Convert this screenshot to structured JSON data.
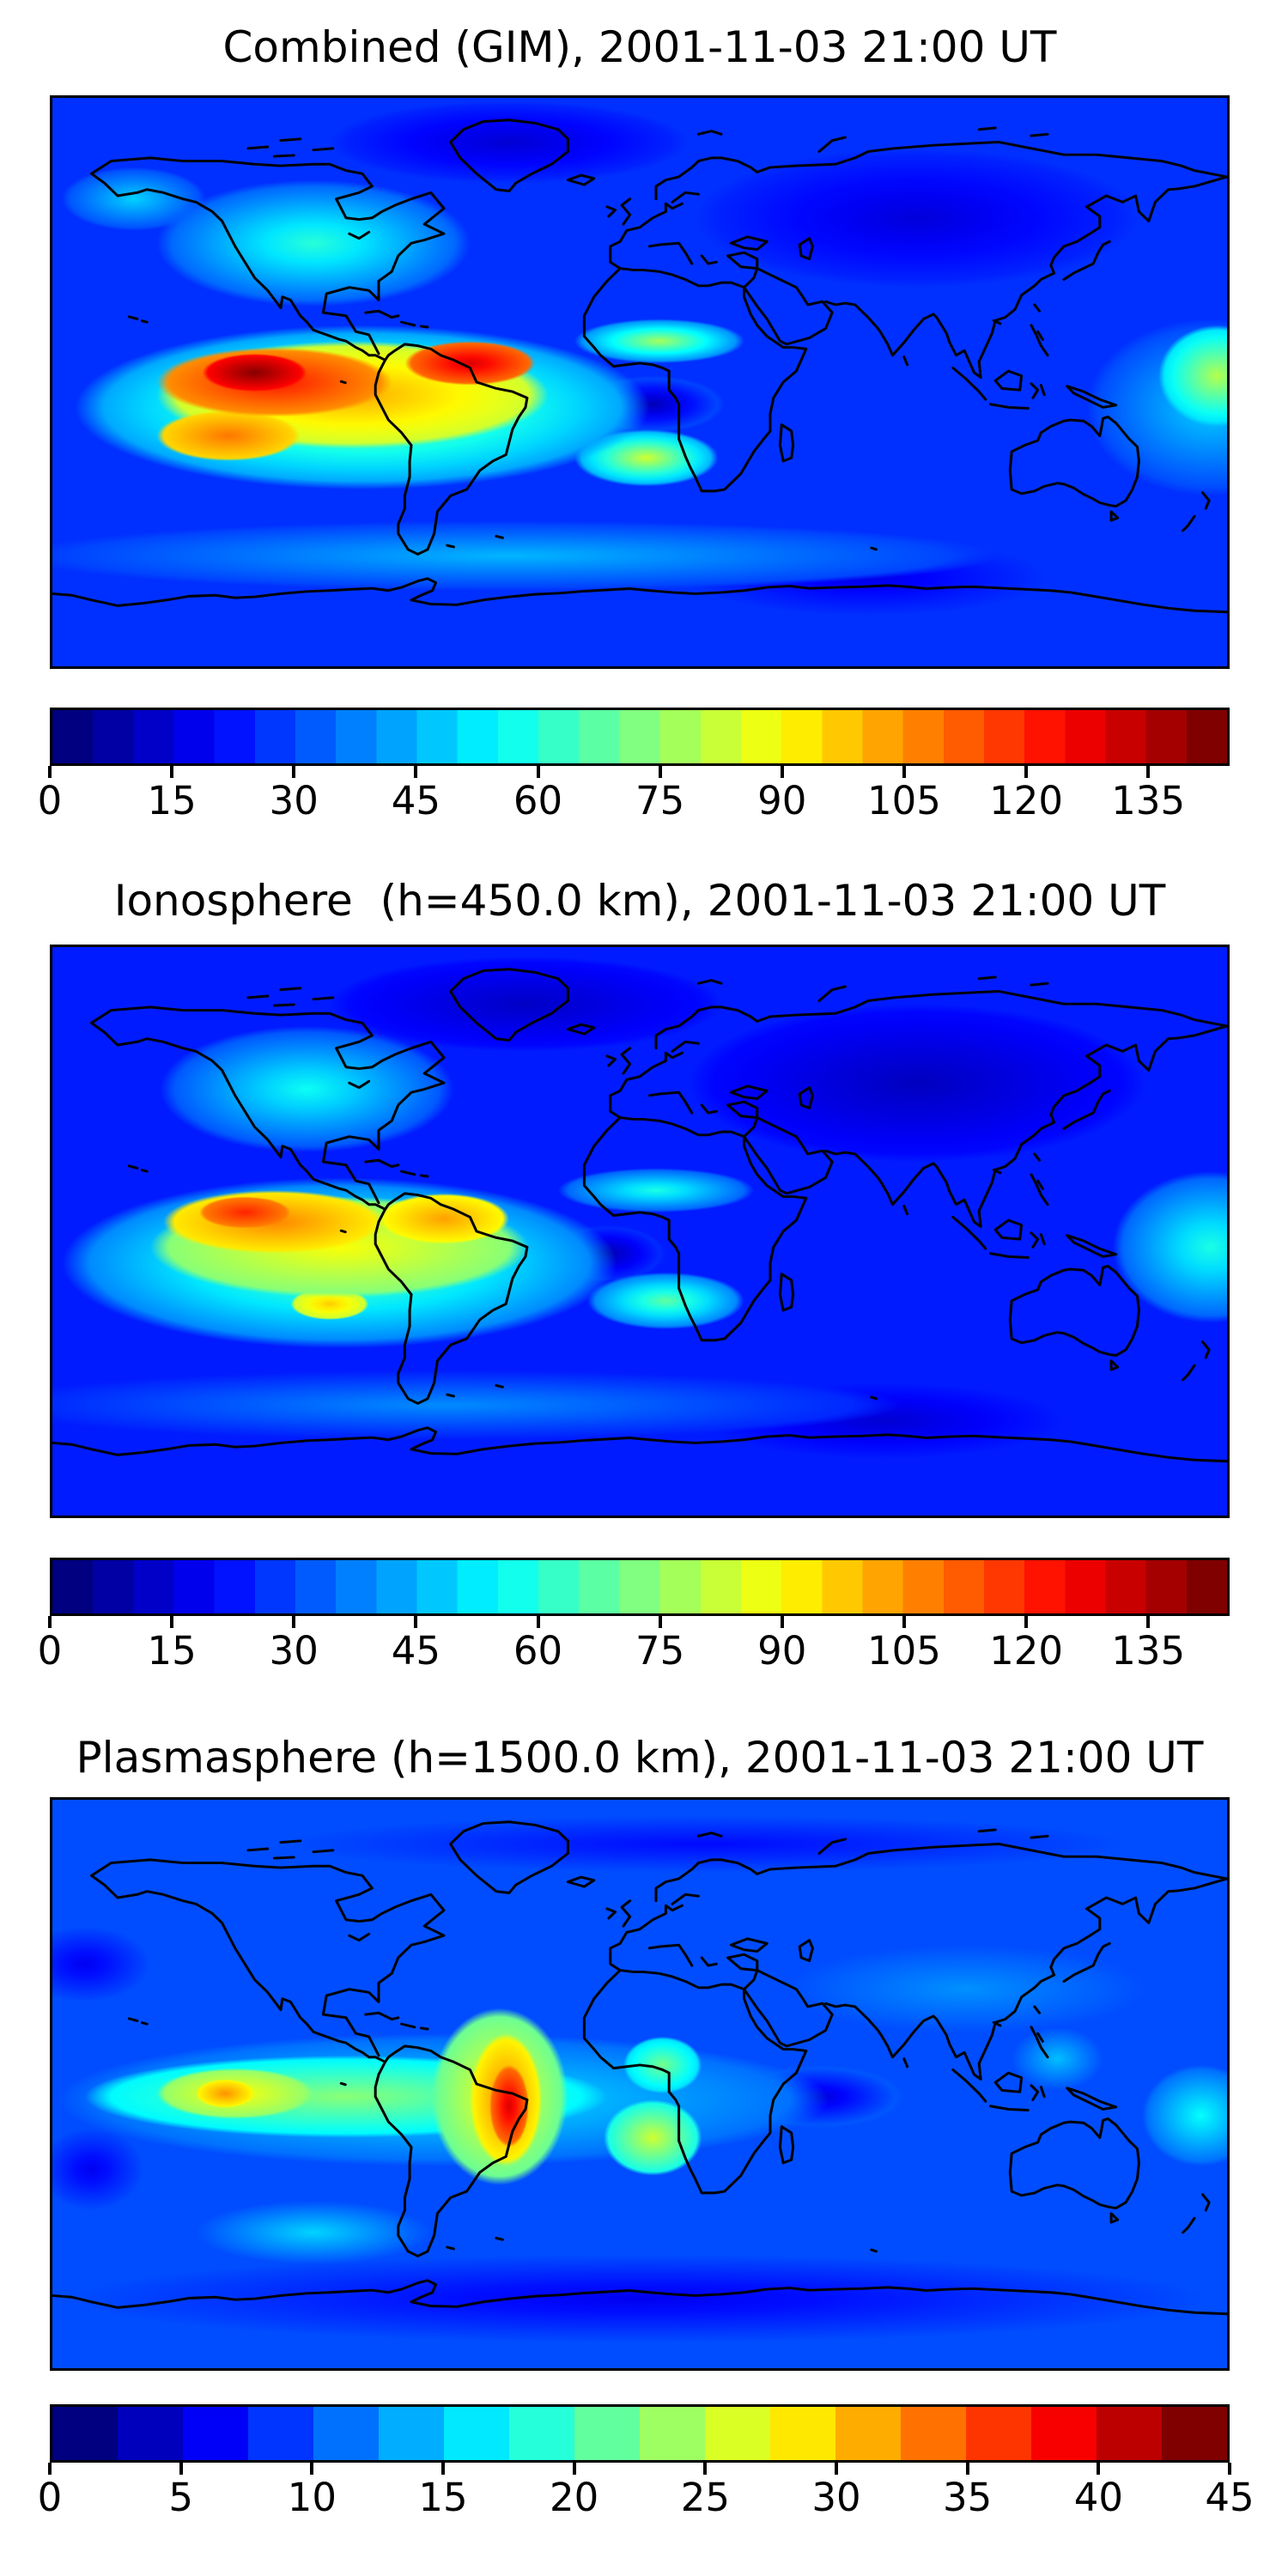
{
  "figure": {
    "kind": "Total Electron Content global maps",
    "time_label": "2001-11-03 21:00 UT"
  },
  "chart_data": [
    {
      "type": "heatmap",
      "subtype": "filled-contour-world-map",
      "title": "Combined (GIM), 2001-11-03 21:00 UT",
      "colormap": "jet",
      "projection": "equirectangular",
      "lon_range": [
        -180,
        180
      ],
      "lat_range": [
        -90,
        90
      ],
      "vmin": 0,
      "vmax": 145,
      "contour_interval": 5,
      "colorbar_ticks": [
        0,
        15,
        30,
        45,
        60,
        75,
        90,
        105,
        120,
        135
      ],
      "base_value": 25,
      "features": [
        {
          "name": "pacific-peak-core",
          "lon": -118,
          "lat": 3,
          "rx_deg": 16,
          "ry_deg": 6,
          "value": 144,
          "env_value": 125
        },
        {
          "name": "south-america-crest",
          "lon": -52,
          "lat": 6,
          "rx_deg": 20,
          "ry_deg": 7,
          "value": 132,
          "env_value": 110
        },
        {
          "name": "pacific-high",
          "lon": -112,
          "lat": 0,
          "rx_deg": 36,
          "ry_deg": 11,
          "value": 124,
          "env_value": 105
        },
        {
          "name": "south-pacific-lobe",
          "lon": -126,
          "lat": -17,
          "rx_deg": 22,
          "ry_deg": 8,
          "value": 110,
          "env_value": 95
        },
        {
          "name": "equatorial-high-band",
          "lon": -88,
          "lat": -4,
          "rx_deg": 60,
          "ry_deg": 17,
          "value": 103,
          "env_value": 82
        },
        {
          "name": "yellow-halo",
          "lon": -85,
          "lat": -8,
          "rx_deg": 88,
          "ry_deg": 26,
          "value": 80,
          "env_value": 38
        },
        {
          "name": "south-atlantic-streak",
          "lon": 2,
          "lat": -24,
          "rx_deg": 22,
          "ry_deg": 9,
          "value": 84,
          "env_value": 40
        },
        {
          "name": "atlantic-africa-streak",
          "lon": 6,
          "lat": 13,
          "rx_deg": 26,
          "ry_deg": 7,
          "value": 78,
          "env_value": 35
        },
        {
          "name": "africa-atlantic-depletion",
          "lon": 4,
          "lat": -7,
          "rx_deg": 22,
          "ry_deg": 9,
          "value": 8,
          "env_value": 30
        },
        {
          "name": "west-pacific-enhancement",
          "lon": 177,
          "lat": 2,
          "rx_deg": 18,
          "ry_deg": 16,
          "value": 80,
          "env_value": 48
        },
        {
          "name": "west-pacific-halo",
          "lon": 175,
          "lat": -8,
          "rx_deg": 38,
          "ry_deg": 28,
          "value": 48,
          "env_value": 27
        },
        {
          "name": "north-america-enhancement",
          "lon": -100,
          "lat": 44,
          "rx_deg": 48,
          "ry_deg": 20,
          "value": 60,
          "env_value": 30
        },
        {
          "name": "alaska-enhancement",
          "lon": -155,
          "lat": 58,
          "rx_deg": 22,
          "ry_deg": 10,
          "value": 48,
          "env_value": 28
        },
        {
          "name": "asia-low",
          "lon": 85,
          "lat": 52,
          "rx_deg": 68,
          "ry_deg": 22,
          "value": 13,
          "env_value": 24
        },
        {
          "name": "arctic-low",
          "lon": -40,
          "lat": 76,
          "rx_deg": 55,
          "ry_deg": 13,
          "value": 12,
          "env_value": 24
        },
        {
          "name": "southern-band",
          "lon": -40,
          "lat": -55,
          "rx_deg": 150,
          "ry_deg": 11,
          "value": 44,
          "env_value": 26
        },
        {
          "name": "south-indian-low",
          "lon": 70,
          "lat": -62,
          "rx_deg": 55,
          "ry_deg": 12,
          "value": 15,
          "env_value": 25
        }
      ]
    },
    {
      "type": "heatmap",
      "subtype": "filled-contour-world-map",
      "title": "Ionosphere  (h=450.0 km), 2001-11-03 21:00 UT",
      "colormap": "jet",
      "projection": "equirectangular",
      "lon_range": [
        -180,
        180
      ],
      "lat_range": [
        -90,
        90
      ],
      "vmin": 0,
      "vmax": 145,
      "contour_interval": 5,
      "colorbar_ticks": [
        0,
        15,
        30,
        45,
        60,
        75,
        90,
        105,
        120,
        135
      ],
      "base_value": 22,
      "features": [
        {
          "name": "ionosphere-peak-core",
          "lon": -121,
          "lat": 6,
          "rx_deg": 14,
          "ry_deg": 5,
          "value": 122,
          "env_value": 108
        },
        {
          "name": "ionosphere-high",
          "lon": -112,
          "lat": 3,
          "rx_deg": 34,
          "ry_deg": 10,
          "value": 108,
          "env_value": 92
        },
        {
          "name": "south-america-lobe",
          "lon": -60,
          "lat": 4,
          "rx_deg": 20,
          "ry_deg": 8,
          "value": 104,
          "env_value": 90
        },
        {
          "name": "equatorial-band",
          "lon": -92,
          "lat": -5,
          "rx_deg": 58,
          "ry_deg": 16,
          "value": 90,
          "env_value": 72
        },
        {
          "name": "south-pacific-spot",
          "lon": -95,
          "lat": -23,
          "rx_deg": 12,
          "ry_deg": 5,
          "value": 98,
          "env_value": 82
        },
        {
          "name": "yellow-halo",
          "lon": -92,
          "lat": -10,
          "rx_deg": 85,
          "ry_deg": 27,
          "value": 72,
          "env_value": 34
        },
        {
          "name": "south-atlantic-streak",
          "lon": 8,
          "lat": -22,
          "rx_deg": 24,
          "ry_deg": 9,
          "value": 68,
          "env_value": 34
        },
        {
          "name": "atlantic-arabia-streak",
          "lon": 5,
          "lat": 13,
          "rx_deg": 30,
          "ry_deg": 7,
          "value": 58,
          "env_value": 30
        },
        {
          "name": "atlantic-depletion",
          "lon": -10,
          "lat": -7,
          "rx_deg": 18,
          "ry_deg": 9,
          "value": 7,
          "env_value": 26
        },
        {
          "name": "north-america-enhancement",
          "lon": -102,
          "lat": 45,
          "rx_deg": 45,
          "ry_deg": 20,
          "value": 56,
          "env_value": 28
        },
        {
          "name": "west-pacific-enhancement",
          "lon": 175,
          "lat": -5,
          "rx_deg": 30,
          "ry_deg": 24,
          "value": 58,
          "env_value": 30
        },
        {
          "name": "asia-low",
          "lon": 85,
          "lat": 47,
          "rx_deg": 70,
          "ry_deg": 25,
          "value": 9,
          "env_value": 20
        },
        {
          "name": "arctic-low",
          "lon": -35,
          "lat": 72,
          "rx_deg": 60,
          "ry_deg": 15,
          "value": 10,
          "env_value": 20
        },
        {
          "name": "southern-band",
          "lon": -60,
          "lat": -55,
          "rx_deg": 140,
          "ry_deg": 11,
          "value": 38,
          "env_value": 22
        },
        {
          "name": "south-indian-low",
          "lon": 75,
          "lat": -60,
          "rx_deg": 55,
          "ry_deg": 12,
          "value": 12,
          "env_value": 22
        }
      ]
    },
    {
      "type": "heatmap",
      "subtype": "filled-contour-world-map",
      "title": "Plasmasphere (h=1500.0 km), 2001-11-03 21:00 UT",
      "colormap": "jet",
      "projection": "equirectangular",
      "lon_range": [
        -180,
        180
      ],
      "lat_range": [
        -90,
        90
      ],
      "vmin": 0,
      "vmax": 45,
      "contour_interval": 2.5,
      "colorbar_ticks": [
        0,
        5,
        10,
        15,
        20,
        25,
        30,
        35,
        40,
        45
      ],
      "base_value": 9,
      "features": [
        {
          "name": "plasmasphere-peak-core",
          "lon": -40,
          "lat": -7,
          "rx_deg": 6,
          "ry_deg": 13,
          "value": 41,
          "env_value": 34
        },
        {
          "name": "plasmasphere-peak",
          "lon": -41,
          "lat": -5,
          "rx_deg": 11,
          "ry_deg": 21,
          "value": 34,
          "env_value": 28
        },
        {
          "name": "brazil-halo",
          "lon": -43,
          "lat": -4,
          "rx_deg": 21,
          "ry_deg": 28,
          "value": 28,
          "env_value": 21
        },
        {
          "name": "pacific-spot",
          "lon": -127,
          "lat": -3,
          "rx_deg": 9,
          "ry_deg": 4.5,
          "value": 33,
          "env_value": 28
        },
        {
          "name": "pacific-yellow",
          "lon": -124,
          "lat": -3,
          "rx_deg": 24,
          "ry_deg": 8,
          "value": 28,
          "env_value": 23
        },
        {
          "name": "equatorial-band",
          "lon": -90,
          "lat": -4,
          "rx_deg": 80,
          "ry_deg": 13,
          "value": 23,
          "env_value": 16
        },
        {
          "name": "africa-green",
          "lon": 4,
          "lat": -17,
          "rx_deg": 15,
          "ry_deg": 12,
          "value": 26,
          "env_value": 17
        },
        {
          "name": "africa-green-north",
          "lon": 7,
          "lat": 6,
          "rx_deg": 12,
          "ry_deg": 9,
          "value": 22,
          "env_value": 15
        },
        {
          "name": "equatorial-cyan-band",
          "lon": -60,
          "lat": -5,
          "rx_deg": 118,
          "ry_deg": 21,
          "value": 16,
          "env_value": 10
        },
        {
          "name": "east-africa-low",
          "lon": 55,
          "lat": -4,
          "rx_deg": 26,
          "ry_deg": 10,
          "value": 4,
          "env_value": 10
        },
        {
          "name": "north-pacific-low",
          "lon": -170,
          "lat": 38,
          "rx_deg": 20,
          "ry_deg": 12,
          "value": 5,
          "env_value": 9
        },
        {
          "name": "south-pacific-low",
          "lon": -168,
          "lat": -27,
          "rx_deg": 16,
          "ry_deg": 13,
          "value": 5,
          "env_value": 9
        },
        {
          "name": "south-america-cyan",
          "lon": -100,
          "lat": -47,
          "rx_deg": 36,
          "ry_deg": 10,
          "value": 15,
          "env_value": 9
        },
        {
          "name": "west-pacific-cyan",
          "lon": 172,
          "lat": -10,
          "rx_deg": 18,
          "ry_deg": 16,
          "value": 17,
          "env_value": 10
        },
        {
          "name": "philippine-cyan",
          "lon": 128,
          "lat": 8,
          "rx_deg": 14,
          "ry_deg": 10,
          "value": 14,
          "env_value": 9
        },
        {
          "name": "asia-light-band",
          "lon": 100,
          "lat": 30,
          "rx_deg": 55,
          "ry_deg": 14,
          "value": 12,
          "env_value": 9
        },
        {
          "name": "arctic-low-band",
          "lon": 20,
          "lat": 76,
          "rx_deg": 130,
          "ry_deg": 9,
          "value": 6,
          "env_value": 9
        },
        {
          "name": "southern-low-band",
          "lon": 0,
          "lat": -68,
          "rx_deg": 175,
          "ry_deg": 14,
          "value": 5,
          "env_value": 9
        }
      ]
    }
  ]
}
